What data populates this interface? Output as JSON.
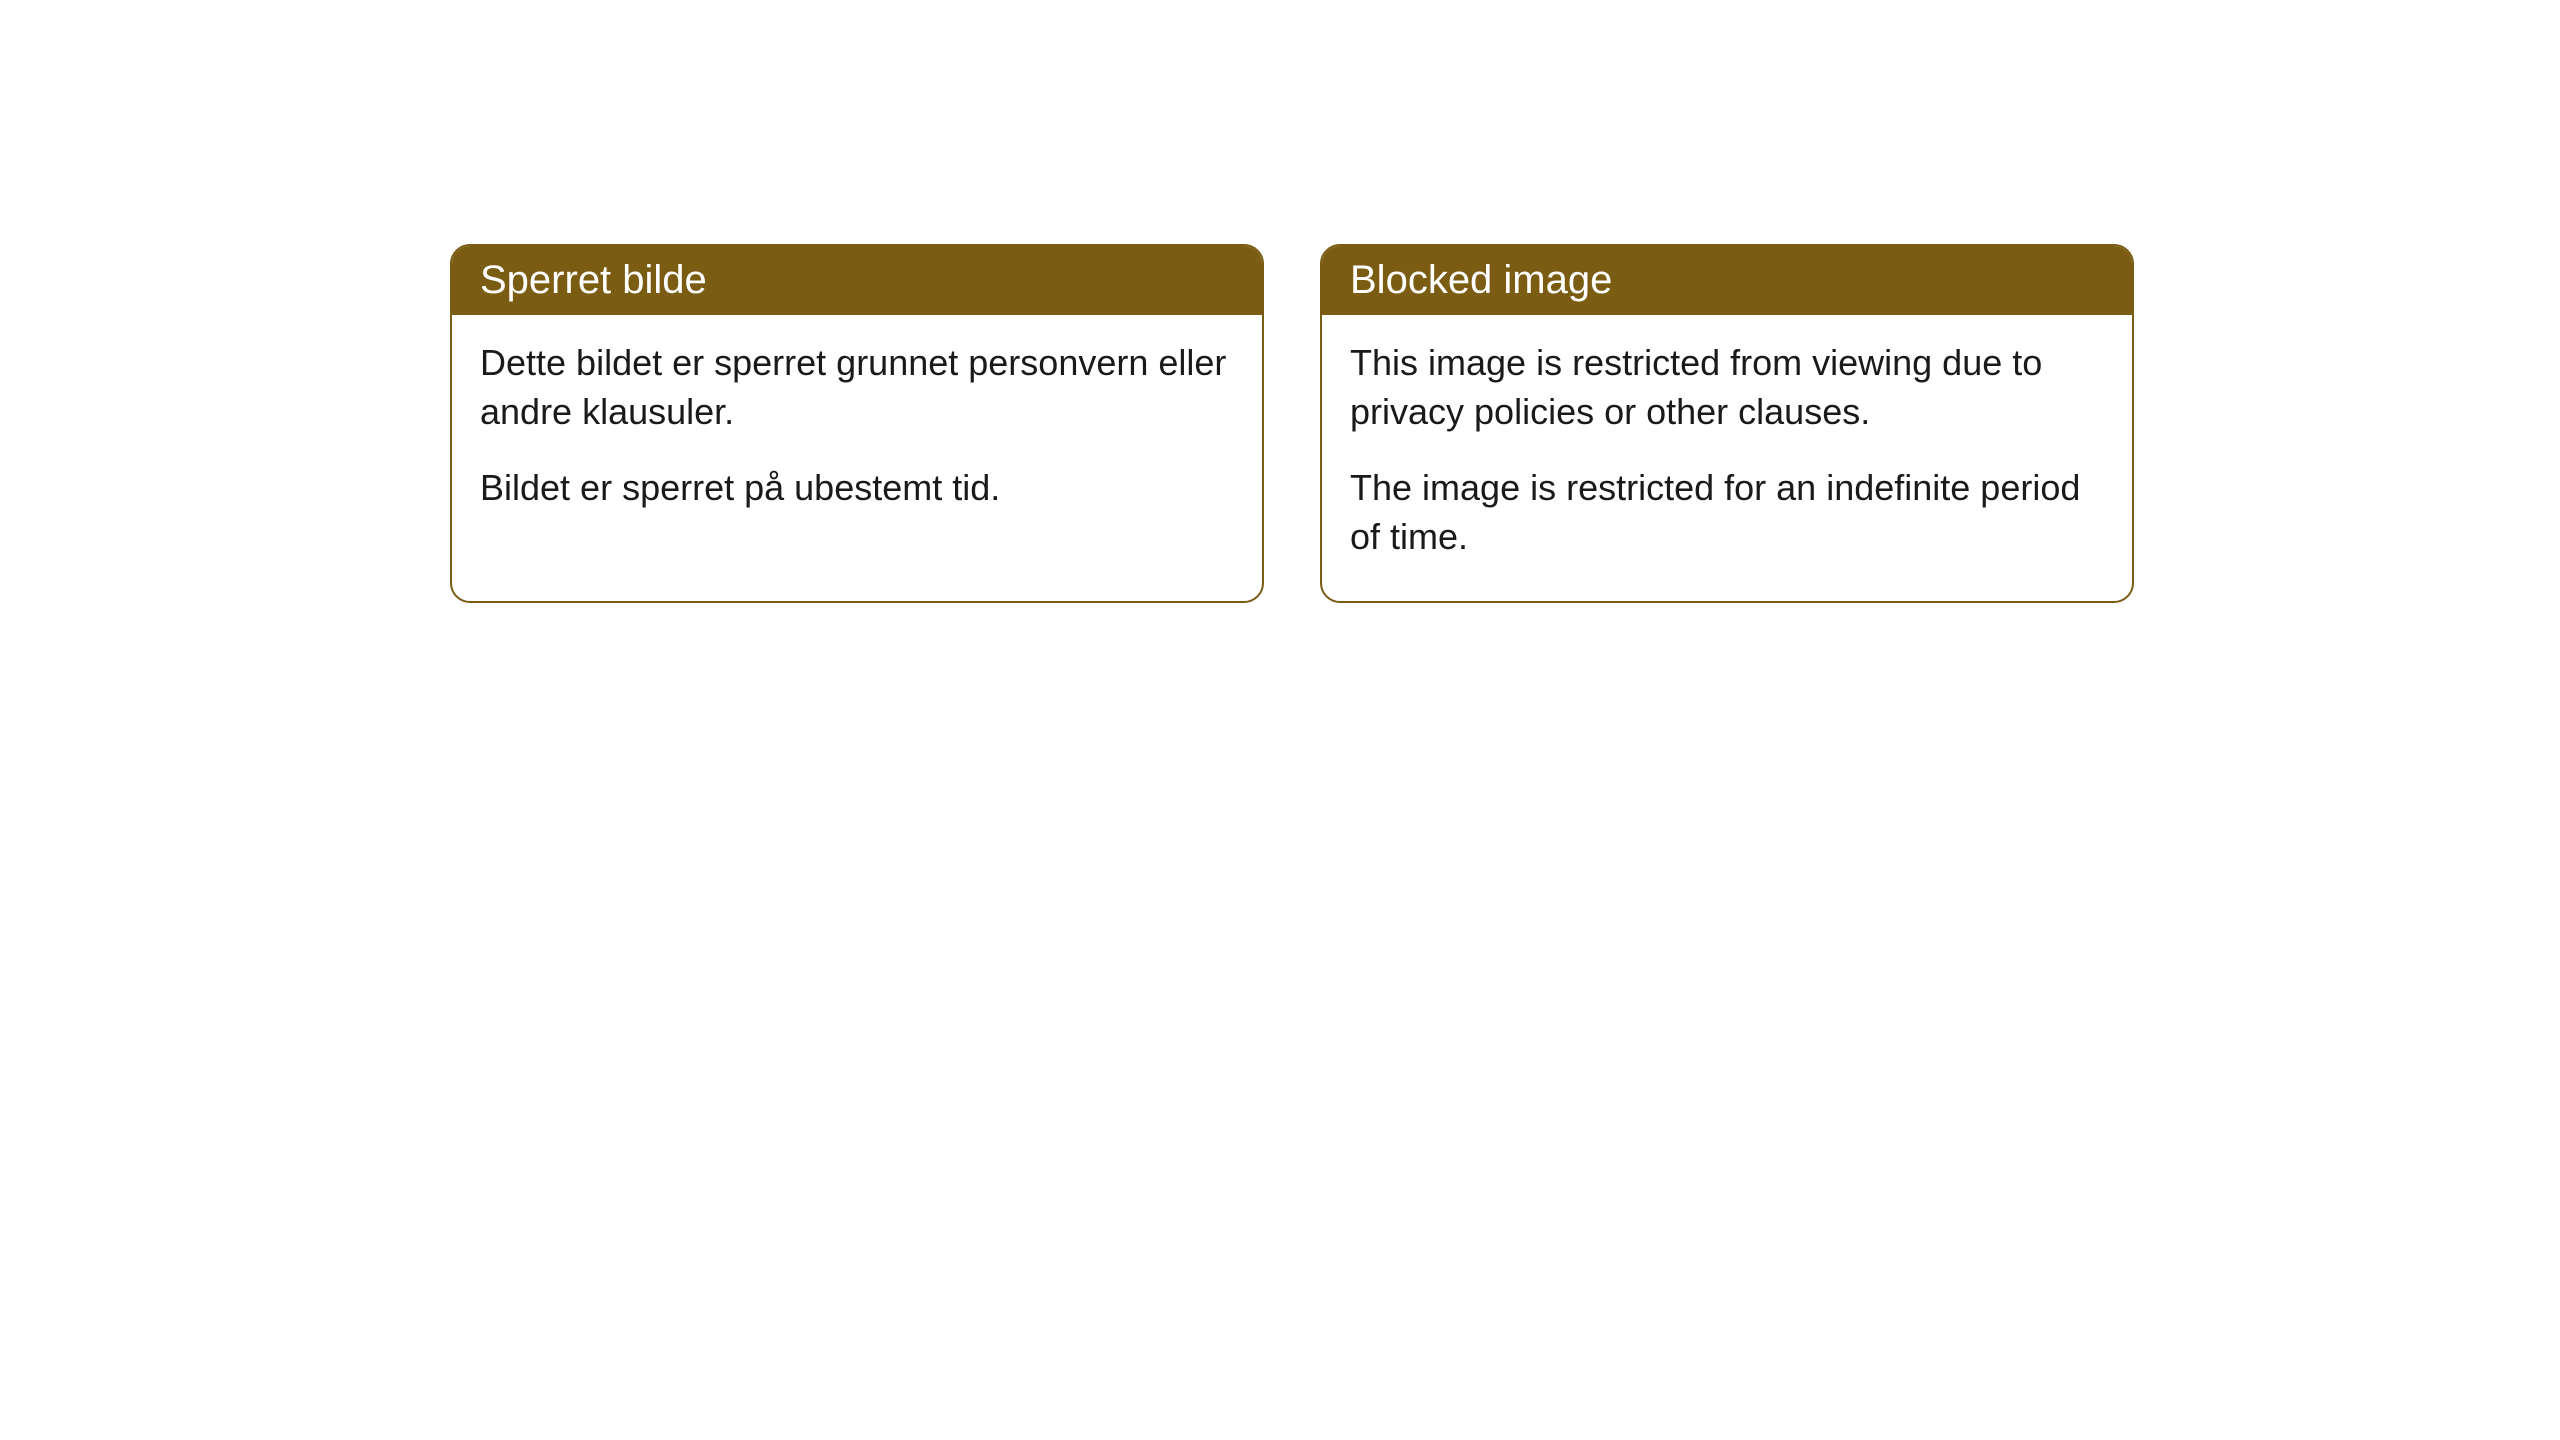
{
  "cards": [
    {
      "title": "Sperret bilde",
      "paragraph1": "Dette bildet er sperret grunnet personvern eller andre klausuler.",
      "paragraph2": "Bildet er sperret på ubestemt tid."
    },
    {
      "title": "Blocked image",
      "paragraph1": "This image is restricted from viewing due to privacy policies or other clauses.",
      "paragraph2": "The image is restricted for an indefinite period of time."
    }
  ],
  "style": {
    "header_background": "#7a5c12",
    "header_text_color": "#ffffff",
    "body_background": "#ffffff",
    "body_text_color": "#1a1a1a",
    "border_color": "#7a5c12",
    "border_radius": 20,
    "title_fontsize": 40,
    "body_fontsize": 36
  }
}
